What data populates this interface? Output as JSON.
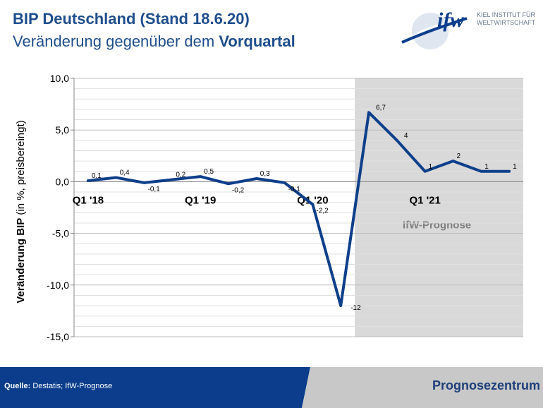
{
  "header": {
    "title": "BIP Deutschland (Stand 18.6.20)",
    "subtitle_prefix": "Veränderung gegenüber dem ",
    "subtitle_bold": "Vorquartal"
  },
  "logo": {
    "wordmark": "ifw",
    "line1": "KIEL INSTITUT FÜR",
    "line2": "WELTWIRTSCHAFT"
  },
  "chart_data": {
    "type": "line",
    "ylabel_bold": "Veränderung BIP",
    "ylabel_rest": " (in %, preisbereingt)",
    "ylim": [
      -15,
      10
    ],
    "yticks": [
      10,
      5,
      0,
      -5,
      -10,
      -15
    ],
    "ytick_labels": [
      "10,0",
      "5,0",
      "0,0",
      "-5,0",
      "-10,0",
      "-15,0"
    ],
    "minor_grid_step": 1,
    "x_labels": [
      {
        "index": 0,
        "label": "Q1 '18"
      },
      {
        "index": 4,
        "label": "Q1 '19"
      },
      {
        "index": 8,
        "label": "Q1 '20"
      },
      {
        "index": 12,
        "label": "Q1 '21"
      }
    ],
    "shaded_region": {
      "from_index": 9.5,
      "to_index": 16.5,
      "label": "IfW-Prognose",
      "color": "#d9d9d9"
    },
    "series": [
      {
        "color": "#0e3f8a",
        "values": [
          0.1,
          0.4,
          -0.1,
          0.2,
          0.5,
          -0.2,
          0.3,
          -0.1,
          -2.2,
          -12,
          6.7,
          4,
          1,
          2,
          1,
          1
        ]
      }
    ],
    "data_labels": [
      {
        "index": 0,
        "text": "0,1"
      },
      {
        "index": 1,
        "text": "0,4"
      },
      {
        "index": 2,
        "text": "-0,1"
      },
      {
        "index": 3,
        "text": "0,2"
      },
      {
        "index": 4,
        "text": "0,5"
      },
      {
        "index": 5,
        "text": "-0,2"
      },
      {
        "index": 6,
        "text": "0,3"
      },
      {
        "index": 7,
        "text": "-0,1"
      },
      {
        "index": 8,
        "text": "-2,2"
      },
      {
        "index": 9,
        "text": "-12"
      },
      {
        "index": 10,
        "text": "6,7"
      },
      {
        "index": 11,
        "text": "4"
      },
      {
        "index": 12,
        "text": "1"
      },
      {
        "index": 13,
        "text": "2"
      },
      {
        "index": 14,
        "text": "1"
      },
      {
        "index": 15,
        "text": "1"
      }
    ],
    "legend": "none"
  },
  "footer": {
    "source_bold": "Quelle:",
    "source_text": " Destatis; IfW-Prognose",
    "right_label": "Prognosezentrum",
    "left_color": "#0b3d8c",
    "right_color": "#c8c8c8"
  }
}
